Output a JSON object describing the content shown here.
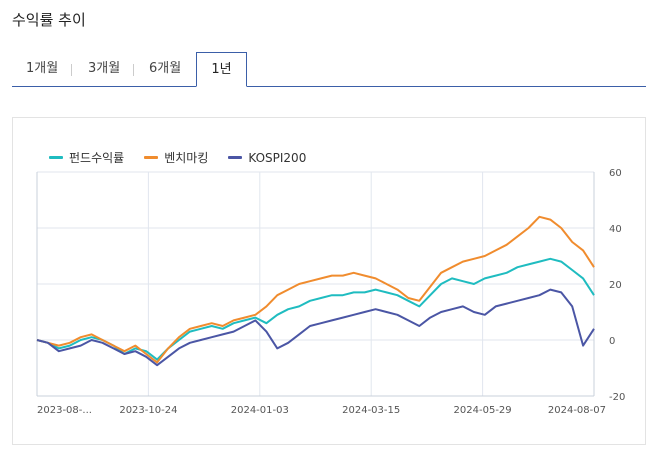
{
  "page": {
    "title": "수익률 추이"
  },
  "tabs": [
    {
      "label": "1개월",
      "active": false
    },
    {
      "label": "3개월",
      "active": false
    },
    {
      "label": "6개월",
      "active": false
    },
    {
      "label": "1년",
      "active": true
    }
  ],
  "chart_data": {
    "type": "line",
    "title": "",
    "xlabel": "",
    "ylabel": "",
    "x_ticks": [
      "2023-08-...",
      "2023-10-24",
      "2024-01-03",
      "2024-03-15",
      "2024-05-29",
      "2024-08-07"
    ],
    "y_ticks": [
      60,
      40,
      20,
      0,
      -20
    ],
    "ylim": [
      -20,
      60
    ],
    "grid": true,
    "legend_position": "top-left",
    "series": [
      {
        "name": "펀드수익률",
        "color": "#1fbcc0",
        "values": [
          0,
          -1,
          -3,
          -2,
          0,
          1,
          0,
          -2,
          -5,
          -3,
          -4,
          -7,
          -3,
          0,
          3,
          4,
          5,
          4,
          6,
          7,
          8,
          6,
          9,
          11,
          12,
          14,
          15,
          16,
          16,
          17,
          17,
          18,
          17,
          16,
          14,
          12,
          16,
          20,
          22,
          21,
          20,
          22,
          23,
          24,
          26,
          27,
          28,
          29,
          28,
          25,
          22,
          16
        ]
      },
      {
        "name": "벤치마킹",
        "color": "#f08c2e",
        "values": [
          0,
          -1,
          -2,
          -1,
          1,
          2,
          0,
          -2,
          -4,
          -2,
          -5,
          -8,
          -3,
          1,
          4,
          5,
          6,
          5,
          7,
          8,
          9,
          12,
          16,
          18,
          20,
          21,
          22,
          23,
          23,
          24,
          23,
          22,
          20,
          18,
          15,
          14,
          19,
          24,
          26,
          28,
          29,
          30,
          32,
          34,
          37,
          40,
          44,
          43,
          40,
          35,
          32,
          26
        ]
      },
      {
        "name": "KOSPI200",
        "color": "#4b56a5",
        "values": [
          0,
          -1,
          -4,
          -3,
          -2,
          0,
          -1,
          -3,
          -5,
          -4,
          -6,
          -9,
          -6,
          -3,
          -1,
          0,
          1,
          2,
          3,
          5,
          7,
          3,
          -3,
          -1,
          2,
          5,
          6,
          7,
          8,
          9,
          10,
          11,
          10,
          9,
          7,
          5,
          8,
          10,
          11,
          12,
          10,
          9,
          12,
          13,
          14,
          15,
          16,
          18,
          17,
          12,
          -2,
          4
        ]
      }
    ]
  }
}
